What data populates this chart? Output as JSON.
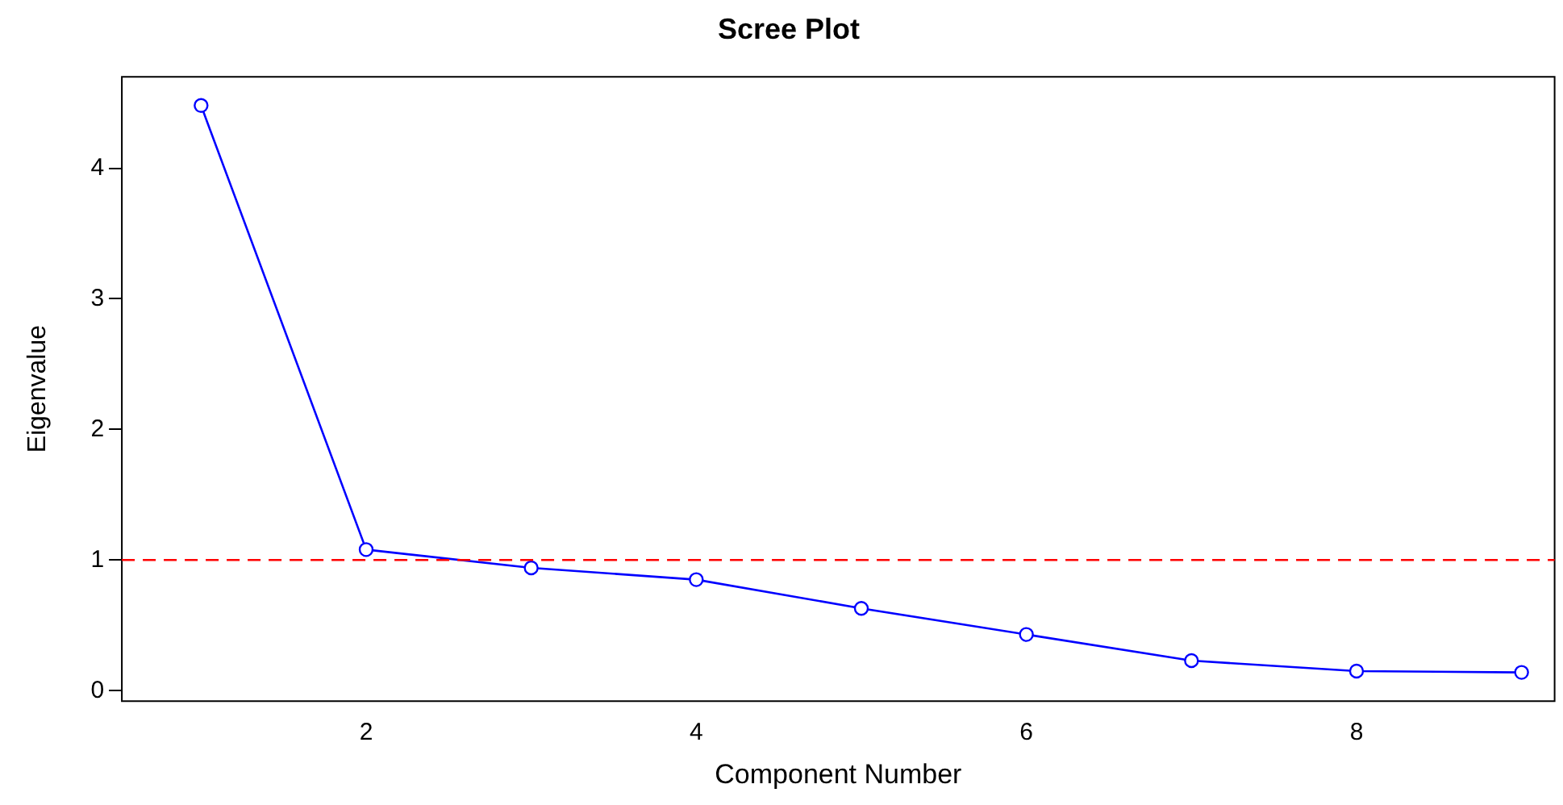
{
  "chart_data": {
    "type": "line",
    "title": "Scree Plot",
    "xlabel": "Component Number",
    "ylabel": "Eigenvalue",
    "x": [
      1,
      2,
      3,
      4,
      5,
      6,
      7,
      8,
      9
    ],
    "series": [
      {
        "color": "#0000ff",
        "values": [
          4.48,
          1.08,
          0.94,
          0.85,
          0.63,
          0.43,
          0.23,
          0.15,
          0.14
        ]
      }
    ],
    "xlim": [
      0.52,
      9.2
    ],
    "ylim": [
      -0.08,
      4.7
    ],
    "xticks": [
      2,
      4,
      6,
      8
    ],
    "yticks": [
      0,
      1,
      2,
      3,
      4
    ],
    "ref_lines": [
      {
        "axis": "y",
        "value": 1,
        "color": "#ff0000",
        "line_style": "dashed"
      }
    ],
    "marker": "circle",
    "line_style": "solid",
    "grid": false,
    "legend": false
  }
}
